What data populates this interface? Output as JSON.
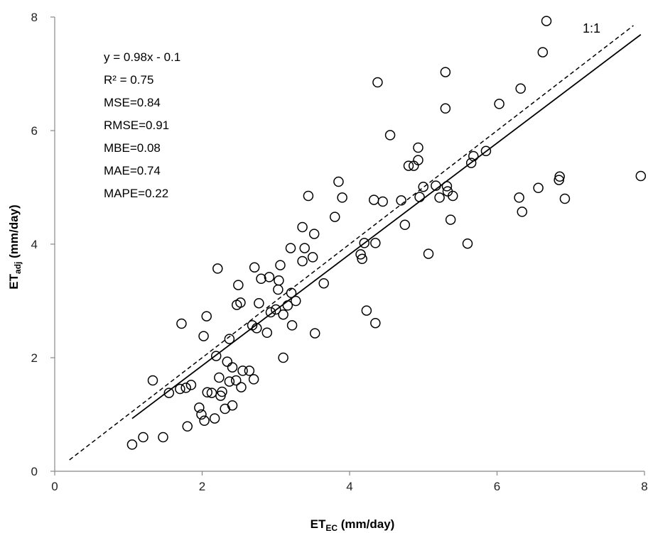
{
  "chart_data": {
    "type": "scatter",
    "xlabel": {
      "main": "ET",
      "sub": "EC",
      "unit": " (mm/day)"
    },
    "ylabel": {
      "main": "ET",
      "sub": "adj",
      "unit": " (mm/day)"
    },
    "xlim": [
      0,
      8
    ],
    "ylim": [
      0,
      8
    ],
    "xticks": [
      "0",
      "2",
      "4",
      "6",
      "8"
    ],
    "yticks": [
      "0",
      "2",
      "4",
      "6",
      "8"
    ],
    "grid": false,
    "legend": "none",
    "stats": [
      "y = 0.98x - 0.1",
      "R² = 0.75",
      "MSE=0.84",
      "RMSE=0.91",
      "MBE=0.08",
      "MAE=0.74",
      "MAPE=0.22"
    ],
    "reference_line": {
      "label": "1:1",
      "slope": 1,
      "intercept": 0,
      "x_range": [
        0.2,
        7.85
      ],
      "style": "dashed"
    },
    "trend_line": {
      "slope": 0.98,
      "intercept": -0.1,
      "x_range": [
        1.05,
        7.95
      ],
      "style": "solid"
    },
    "marker": "open-circle",
    "colors": {
      "marker": "#000000",
      "line": "#000000",
      "axis": "#888888"
    },
    "points": [
      [
        1.05,
        0.47
      ],
      [
        1.2,
        0.6
      ],
      [
        1.47,
        0.6
      ],
      [
        1.33,
        1.6
      ],
      [
        1.55,
        1.38
      ],
      [
        1.7,
        1.45
      ],
      [
        1.78,
        1.47
      ],
      [
        1.85,
        1.52
      ],
      [
        1.72,
        2.6
      ],
      [
        1.8,
        0.79
      ],
      [
        1.96,
        1.12
      ],
      [
        1.99,
        1.0
      ],
      [
        2.03,
        0.89
      ],
      [
        2.02,
        2.38
      ],
      [
        2.06,
        2.73
      ],
      [
        2.07,
        1.39
      ],
      [
        2.13,
        1.38
      ],
      [
        2.17,
        0.93
      ],
      [
        2.19,
        2.03
      ],
      [
        2.21,
        3.57
      ],
      [
        2.23,
        1.65
      ],
      [
        2.25,
        1.33
      ],
      [
        2.27,
        1.4
      ],
      [
        2.31,
        1.1
      ],
      [
        2.34,
        1.93
      ],
      [
        2.37,
        2.33
      ],
      [
        2.37,
        1.58
      ],
      [
        2.41,
        1.16
      ],
      [
        2.41,
        1.83
      ],
      [
        2.46,
        1.6
      ],
      [
        2.47,
        2.93
      ],
      [
        2.49,
        3.28
      ],
      [
        2.52,
        2.97
      ],
      [
        2.53,
        1.48
      ],
      [
        2.55,
        1.77
      ],
      [
        2.64,
        1.77
      ],
      [
        2.68,
        2.57
      ],
      [
        2.7,
        1.62
      ],
      [
        2.71,
        3.59
      ],
      [
        2.74,
        2.52
      ],
      [
        2.77,
        2.96
      ],
      [
        2.8,
        3.39
      ],
      [
        2.88,
        2.44
      ],
      [
        2.91,
        3.42
      ],
      [
        2.93,
        2.8
      ],
      [
        3.0,
        2.85
      ],
      [
        3.03,
        3.2
      ],
      [
        3.04,
        3.36
      ],
      [
        3.06,
        3.63
      ],
      [
        3.1,
        2.0
      ],
      [
        3.1,
        2.76
      ],
      [
        3.16,
        2.92
      ],
      [
        3.2,
        3.93
      ],
      [
        3.21,
        3.14
      ],
      [
        3.22,
        2.57
      ],
      [
        3.27,
        3.0
      ],
      [
        3.36,
        4.3
      ],
      [
        3.36,
        3.7
      ],
      [
        3.39,
        3.93
      ],
      [
        3.44,
        4.85
      ],
      [
        3.5,
        3.77
      ],
      [
        3.52,
        4.18
      ],
      [
        3.53,
        2.43
      ],
      [
        3.65,
        3.31
      ],
      [
        3.8,
        4.48
      ],
      [
        3.85,
        5.1
      ],
      [
        3.9,
        4.82
      ],
      [
        4.15,
        3.82
      ],
      [
        4.17,
        3.74
      ],
      [
        4.2,
        4.02
      ],
      [
        4.23,
        2.83
      ],
      [
        4.33,
        4.78
      ],
      [
        4.35,
        4.02
      ],
      [
        4.35,
        2.61
      ],
      [
        4.38,
        6.85
      ],
      [
        4.45,
        4.75
      ],
      [
        4.55,
        5.92
      ],
      [
        4.7,
        4.77
      ],
      [
        4.75,
        4.34
      ],
      [
        4.8,
        5.38
      ],
      [
        4.87,
        5.38
      ],
      [
        4.93,
        5.7
      ],
      [
        4.93,
        5.48
      ],
      [
        4.95,
        4.83
      ],
      [
        5.0,
        5.01
      ],
      [
        5.07,
        3.83
      ],
      [
        5.17,
        5.03
      ],
      [
        5.22,
        4.82
      ],
      [
        5.3,
        7.03
      ],
      [
        5.3,
        6.39
      ],
      [
        5.32,
        5.02
      ],
      [
        5.33,
        4.93
      ],
      [
        5.37,
        4.43
      ],
      [
        5.4,
        4.85
      ],
      [
        5.6,
        4.01
      ],
      [
        5.65,
        5.43
      ],
      [
        5.68,
        5.55
      ],
      [
        5.85,
        5.64
      ],
      [
        6.03,
        6.47
      ],
      [
        6.3,
        4.82
      ],
      [
        6.32,
        6.74
      ],
      [
        6.34,
        4.57
      ],
      [
        6.56,
        4.99
      ],
      [
        6.62,
        7.38
      ],
      [
        6.67,
        7.93
      ],
      [
        6.84,
        5.13
      ],
      [
        6.85,
        5.19
      ],
      [
        6.92,
        4.8
      ],
      [
        7.95,
        5.2
      ]
    ]
  }
}
